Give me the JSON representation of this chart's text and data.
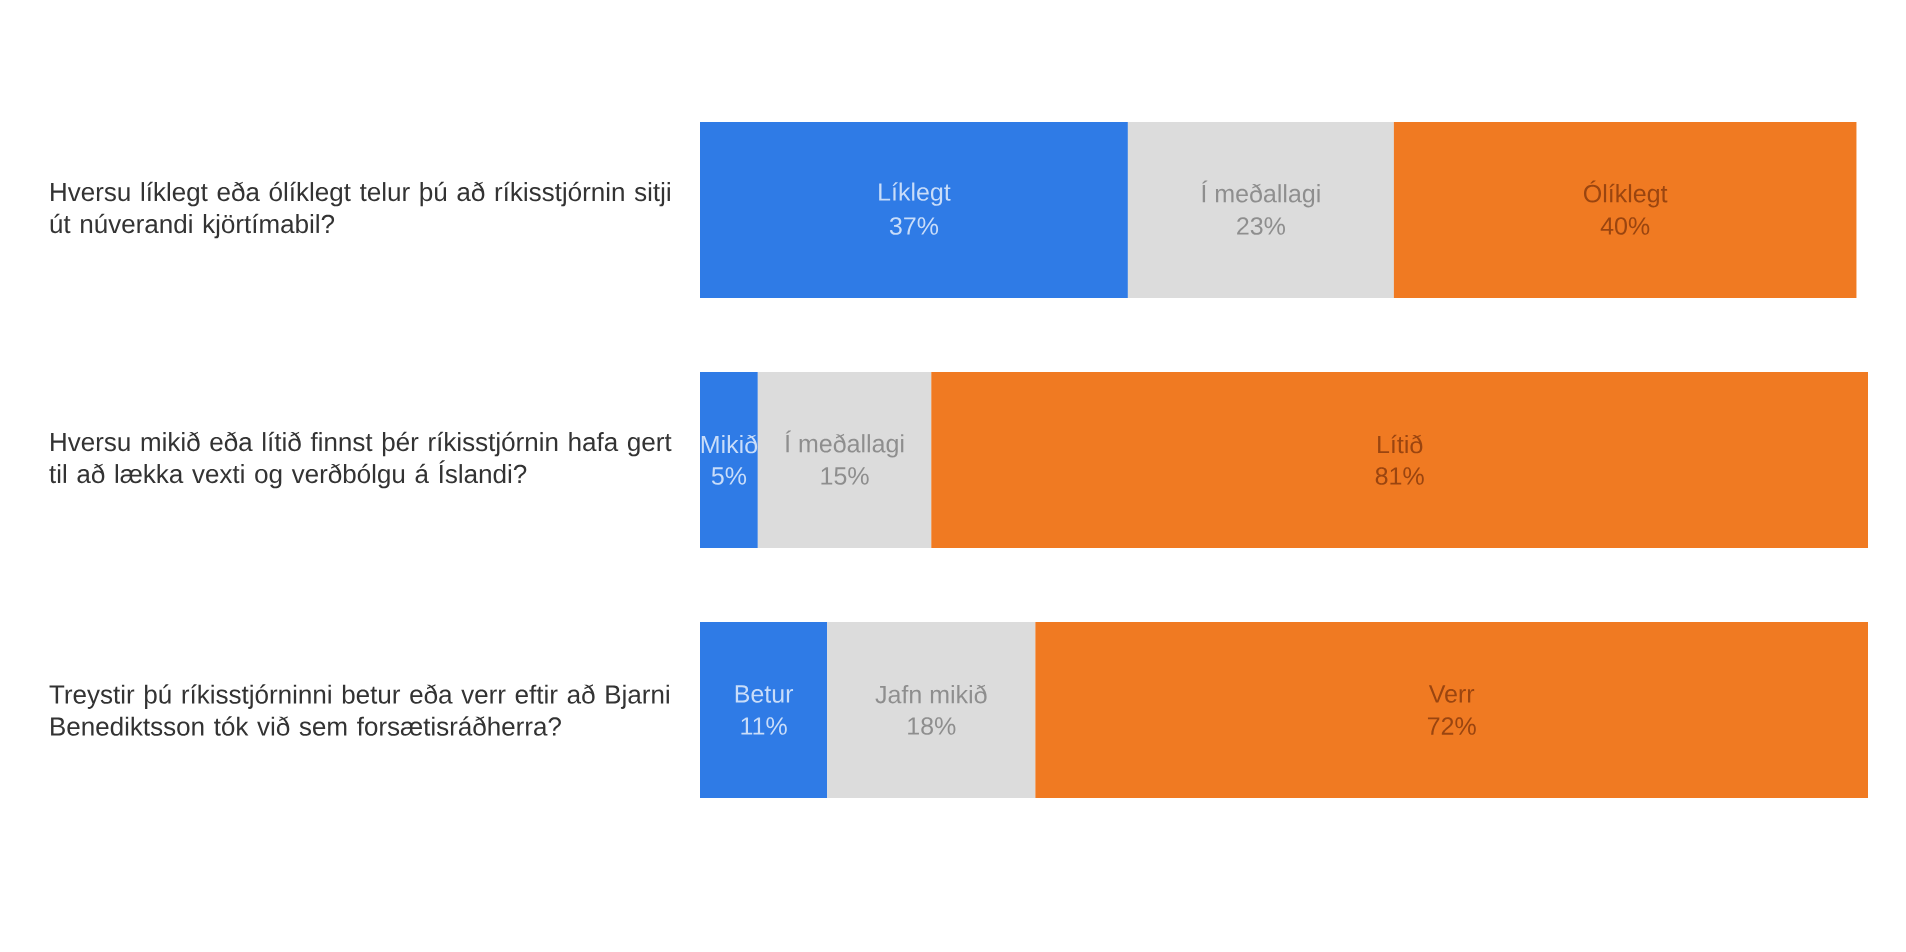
{
  "chart_data": {
    "type": "bar",
    "orientation": "horizontal",
    "stacked": true,
    "tick_labels": "y",
    "xlim": [
      0,
      101
    ],
    "categories": [
      "Hversu líklegt eða ólíklegt telur þú að ríkisstjórnin sitji út núverandi kjörtímabil?",
      "Hversu mikið eða lítið finnst þér ríkisstjórnin hafa gert til að lækka vexti og verðbólgu á Íslandi?",
      "Treystir þú ríkisstjórninni betur eða verr eftir að Bjarni Benediktsson tók við sem forsætisráðherra?"
    ],
    "series": [
      {
        "color": "#2f7be6",
        "values": [
          37,
          5,
          11
        ],
        "value_labels": [
          "37%",
          "5%",
          "11%"
        ]
      },
      {
        "color": "#dcdcdc",
        "values": [
          23,
          15,
          18
        ],
        "value_labels": [
          "23%",
          "15%",
          "18%"
        ]
      },
      {
        "color": "#f07a22",
        "values": [
          40,
          81,
          72
        ],
        "value_labels": [
          "40%",
          "81%",
          "72%"
        ]
      }
    ],
    "annotations": [
      "Líklegt",
      "Í meðallagi",
      "Ólíklegt",
      "Mikið",
      "Í meðallagi",
      "Lítið",
      "Betur",
      "Jafn mikið",
      "Verr"
    ]
  }
}
